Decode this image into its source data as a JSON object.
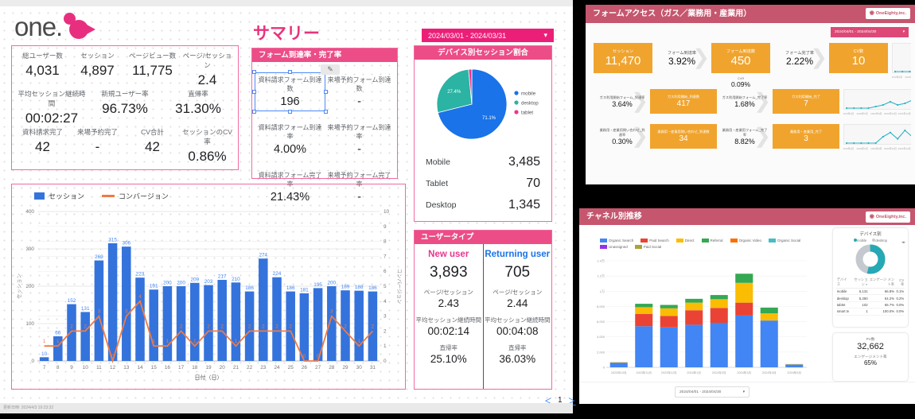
{
  "icons": {
    "chevron_down": "▾",
    "arrow_right": "❯",
    "pager_prev": "＜",
    "pager_next": "＞",
    "edit_pencil": "✎",
    "panel_arrows": "◂▸",
    "sort_desc": "▼",
    "logo_glyph": "◉"
  },
  "left_dashboard": {
    "logo_text": "one.",
    "page_title": "サマリー",
    "date_chip": "2024/03/01 - 2024/03/31",
    "kpi_card": {
      "rows": [
        [
          {
            "label": "総ユーザー数",
            "value": "4,031"
          },
          {
            "label": "セッション",
            "value": "4,897"
          },
          {
            "label": "ページビュー数",
            "value": "11,775"
          },
          {
            "label": "ページ/セッション",
            "value": "2.4"
          }
        ],
        [
          {
            "label": "平均セッション継続時間",
            "value": "00:02:27"
          },
          {
            "label": "新規ユーザー率",
            "value": "96.73%"
          },
          {
            "label": "直帰率",
            "value": "31.30%"
          }
        ],
        [
          {
            "label": "資料請求完了",
            "value": "42"
          },
          {
            "label": "来場予約完了",
            "value": "-"
          },
          {
            "label": "CV合計",
            "value": "42"
          },
          {
            "label": "セッションのCV率",
            "value": "0.86%"
          }
        ]
      ]
    },
    "form_card": {
      "title": "フォーム到達率・完了率",
      "cells": [
        {
          "label": "資料請求フォーム到達数",
          "value": "196",
          "selected": true
        },
        {
          "label": "来場予約フォーム到達数",
          "value": "-"
        },
        {
          "label": "資料請求フォーム到達率",
          "value": "4.00%"
        },
        {
          "label": "来場予約フォーム到達率",
          "value": "-"
        },
        {
          "label": "資料請求フォーム完了率",
          "value": "21.43%"
        },
        {
          "label": "来場予約フォーム完了率",
          "value": "-"
        }
      ]
    },
    "device_card": {
      "title": "デバイス別セッション割合",
      "chart_data": {
        "type": "pie",
        "labels": [
          "mobile",
          "desktop",
          "tablet"
        ],
        "values": [
          71.1,
          27.4,
          1.5
        ],
        "colors": [
          "#1a73e8",
          "#2bb3a3",
          "#e8368f"
        ],
        "slice_labels": [
          "71.1%",
          "27.4%",
          ""
        ]
      },
      "list": [
        {
          "label": "Mobile",
          "value": "3,485"
        },
        {
          "label": "Tablet",
          "value": "70"
        },
        {
          "label": "Desktop",
          "value": "1,345"
        }
      ]
    },
    "usertype_card": {
      "title": "ユーザータイプ",
      "columns": [
        {
          "name": "New user",
          "color": "#e8368f",
          "value": "3,893",
          "metrics": [
            {
              "label": "ページ/セッション",
              "value": "2.43"
            },
            {
              "label": "平均セッション継続時間",
              "value": "00:02:14"
            },
            {
              "label": "直帰率",
              "value": "25.10%"
            }
          ]
        },
        {
          "name": "Returning user",
          "color": "#1a73e8",
          "value": "705",
          "metrics": [
            {
              "label": "ページ/セッション",
              "value": "2.44"
            },
            {
              "label": "平均セッション継続時間",
              "value": "00:04:08"
            },
            {
              "label": "直帰率",
              "value": "36.03%"
            }
          ]
        }
      ]
    },
    "timeseries_card": {
      "legend": [
        {
          "label": "セッション",
          "color": "#3473dc",
          "type": "bar"
        },
        {
          "label": "コンバージョン",
          "color": "#ef7b45",
          "type": "line"
        }
      ],
      "chart_data": {
        "type": "bar+line",
        "x": [
          7,
          8,
          9,
          10,
          11,
          12,
          13,
          14,
          15,
          16,
          17,
          18,
          19,
          20,
          21,
          22,
          23,
          24,
          25,
          26,
          27,
          28,
          29,
          30,
          31
        ],
        "series": [
          {
            "name": "セッション",
            "values": [
              10,
              66,
              152,
              131,
              269,
              315,
              306,
              223,
              191,
              200,
              200,
              209,
              203,
              217,
              210,
              186,
              274,
              224,
              186,
              181,
              195,
              200,
              189,
              188,
              186
            ]
          },
          {
            "name": "コンバージョン",
            "values": [
              1,
              1,
              2,
              2,
              3,
              0,
              3,
              4,
              1,
              1,
              2,
              1,
              2,
              2,
              1,
              2,
              2,
              2,
              2,
              0,
              0,
              3,
              2,
              1,
              2
            ]
          }
        ],
        "ylabel_left": "セッション",
        "ylabel_right": "コンバージョン",
        "xlabel": "日付（日）",
        "ylim_left": [
          0,
          400
        ],
        "yticks_left": [
          0,
          100,
          200,
          300,
          400
        ],
        "ylim_right": [
          0,
          10
        ],
        "yticks_right": [
          0,
          1,
          2,
          3,
          4,
          5,
          6,
          7,
          8,
          9,
          10
        ]
      }
    },
    "pagination": {
      "prev": "＜",
      "page": "1",
      "next": "＞"
    },
    "footer_text": "更新日時: 2024/4/3 19:23:32"
  },
  "right_rail": {
    "top_card": {
      "title": "フォームアクセス（ガス／業務用・産業用）",
      "badge": "OneEighty,inc.",
      "date_chip": "2024/04/01 - 2024/04/30",
      "rows": [
        {
          "tiles": [
            {
              "type": "orange",
              "label": "セッション",
              "value": "11,470"
            },
            {
              "type": "arrow",
              "label": "フォーム到達率",
              "value": "3.92%"
            },
            {
              "type": "orange",
              "label": "フォーム到達数",
              "value": "450",
              "sub_label": "CVR",
              "sub_value": "0.09%"
            },
            {
              "type": "arrow",
              "label": "フォーム完了率",
              "value": "2.22%"
            },
            {
              "type": "orange",
              "label": "CV数",
              "value": "10"
            }
          ],
          "spark": [
            0,
            0,
            0,
            0,
            1,
            3,
            2,
            1,
            6,
            13,
            9,
            4,
            2
          ]
        },
        {
          "tiles": [
            {
              "type": "arrow",
              "label": "ガス利用開始フォーム_到達率",
              "value": "3.64%"
            },
            {
              "type": "orange",
              "label": "ガス利用開始_到達数",
              "value": "417"
            },
            {
              "type": "arrow",
              "label": "ガス利用開始フォーム_完了率",
              "value": "1.68%"
            },
            {
              "type": "orange",
              "label": "ガス利用開始_完了",
              "value": "7"
            }
          ],
          "spark": [
            0,
            0,
            0,
            0,
            1,
            2,
            4,
            2,
            3,
            5,
            8,
            4,
            3
          ]
        },
        {
          "tiles": [
            {
              "type": "arrow",
              "label": "業務用・産業用問い合わせ_到達率",
              "value": "0.30%"
            },
            {
              "type": "orange",
              "label": "業務用・産業用問い合わせ_到達数",
              "value": "34"
            },
            {
              "type": "arrow",
              "label": "業務用・産業用フォーム_完了率",
              "value": "8.82%"
            },
            {
              "type": "orange",
              "label": "業務用・産業用_完了",
              "value": "3"
            }
          ],
          "spark": [
            0,
            0,
            0,
            0,
            0,
            3,
            5,
            2,
            6,
            3,
            6,
            4,
            1
          ]
        }
      ],
      "spark_x_labels": [
        "2023年4月",
        "2023年6月",
        "2023年8月",
        "2023年10月",
        "2023年12月",
        "2024年2月",
        "2024年4月"
      ]
    },
    "bottom_card": {
      "title": "チャネル別推移",
      "badge": "OneEighty,inc.",
      "legend": [
        {
          "label": "Organic Search",
          "color": "#4285f4"
        },
        {
          "label": "Paid Search",
          "color": "#ea4335"
        },
        {
          "label": "Direct",
          "color": "#fbbc04"
        },
        {
          "label": "Referral",
          "color": "#34a853"
        },
        {
          "label": "Organic Video",
          "color": "#ff6d01"
        },
        {
          "label": "Organic Social",
          "color": "#46bdc6"
        },
        {
          "label": "Unassigned",
          "color": "#9334e6"
        },
        {
          "label": "Paid Social",
          "color": "#a8a53a"
        }
      ],
      "chart_data": {
        "type": "stacked-bar",
        "categories": [
          "2023年10月",
          "2023年11月",
          "2023年12月",
          "2024年1月",
          "2024年2月",
          "2024年3月",
          "2024年4月",
          "2024年5月"
        ],
        "series": [
          {
            "name": "Organic Search",
            "color": "#4285f4",
            "values": [
              620,
              5400,
              5250,
              5600,
              5850,
              6800,
              6150,
              380
            ]
          },
          {
            "name": "Paid Search",
            "color": "#ea4335",
            "values": [
              0,
              1600,
              1500,
              1900,
              1950,
              1700,
              0,
              0
            ]
          },
          {
            "name": "Direct",
            "color": "#fbbc04",
            "values": [
              60,
              900,
              1000,
              1000,
              1150,
              2600,
              950,
              60
            ]
          },
          {
            "name": "Referral",
            "color": "#34a853",
            "values": [
              0,
              450,
              450,
              500,
              550,
              1200,
              750,
              0
            ]
          }
        ],
        "ylim": [
          0,
          14000
        ],
        "yticks": [
          "0",
          "2,000",
          "4,000",
          "6,000",
          "8,000",
          "1万",
          "1.2万",
          "1.4万"
        ]
      },
      "device_panel": {
        "title": "デバイス別",
        "legend": [
          {
            "label": "mobile",
            "color": "#26a8b5"
          },
          {
            "label": "desktop",
            "color": "#c9cdd2"
          }
        ],
        "donut": {
          "values": [
            54,
            46
          ],
          "colors": [
            "#26a8b5",
            "#c4c9cf"
          ]
        },
        "table": {
          "headers": [
            "デバイス",
            "セッション",
            "エンゲージ メント率",
            "CV率"
          ],
          "rows": [
            [
              "mobile",
              "6,131",
              "66.8%",
              "0.1%"
            ],
            [
              "desktop",
              "5,250",
              "64.2%",
              "0.2%"
            ],
            [
              "tablet",
              "102",
              "65.7%",
              "0.0%"
            ],
            [
              "smart tv",
              "1",
              "100.0%",
              "0.0%"
            ]
          ]
        }
      },
      "pv_panel": {
        "pv_label": "PV数",
        "pv_value": "32,662",
        "eng_label": "エンゲージメント率",
        "eng_value": "65%"
      },
      "date_chip": "2024/04/01 - 2024/04/30"
    }
  }
}
